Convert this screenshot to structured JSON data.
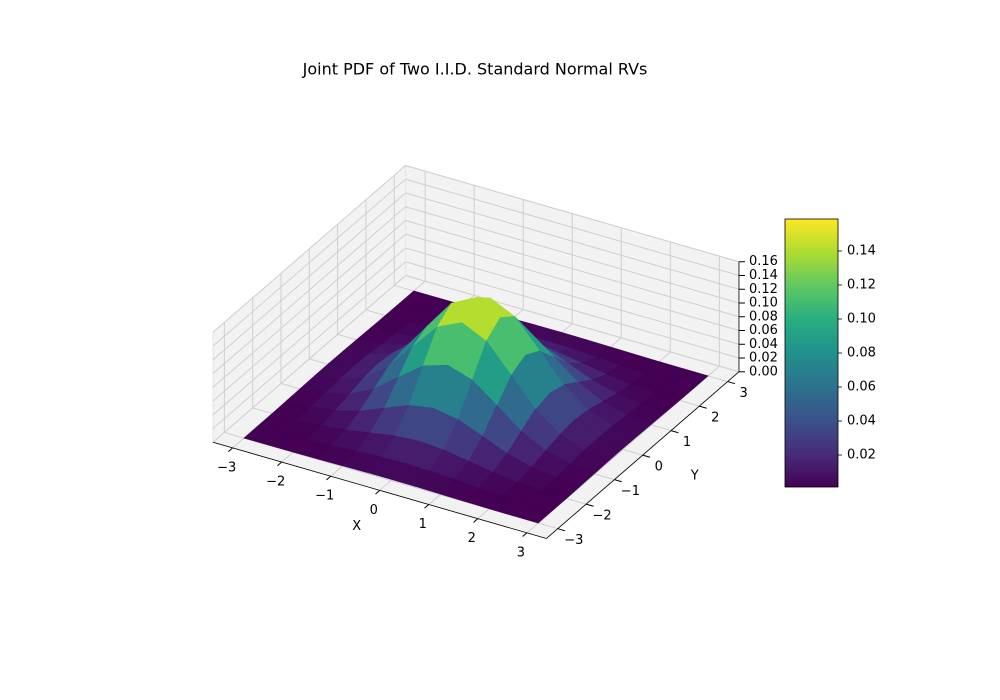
{
  "chart_data": {
    "type": "surface",
    "title": "Joint PDF of Two I.I.D. Standard Normal RVs",
    "xlabel": "X",
    "ylabel": "Y",
    "x": [
      -3,
      -2.5,
      -2,
      -1.5,
      -1,
      -0.5,
      0,
      0.5,
      1,
      1.5,
      2,
      2.5,
      3
    ],
    "y": [
      -3,
      -2.5,
      -2,
      -1.5,
      -1,
      -0.5,
      0,
      0.5,
      1,
      1.5,
      2,
      2.5,
      3
    ],
    "z": [
      [
        0,
        0.0001,
        0.0002,
        0.0006,
        0.0011,
        0.0016,
        0.0018,
        0.0016,
        0.0011,
        0.0006,
        0.0002,
        0.0001,
        0
      ],
      [
        0.0001,
        0.0003,
        0.0009,
        0.0023,
        0.0042,
        0.0062,
        0.007,
        0.0062,
        0.0042,
        0.0023,
        0.0009,
        0.0003,
        0.0001
      ],
      [
        0.0002,
        0.0009,
        0.0029,
        0.007,
        0.0131,
        0.019,
        0.0215,
        0.019,
        0.0131,
        0.007,
        0.0029,
        0.0009,
        0.0002
      ],
      [
        0.0006,
        0.0023,
        0.007,
        0.0168,
        0.0313,
        0.0456,
        0.0517,
        0.0456,
        0.0313,
        0.0168,
        0.007,
        0.0023,
        0.0006
      ],
      [
        0.0011,
        0.0042,
        0.0131,
        0.0313,
        0.0586,
        0.0852,
        0.0965,
        0.0852,
        0.0586,
        0.0313,
        0.0131,
        0.0042,
        0.0011
      ],
      [
        0.0016,
        0.0062,
        0.019,
        0.0456,
        0.0852,
        0.124,
        0.1405,
        0.124,
        0.0852,
        0.0456,
        0.019,
        0.0062,
        0.0016
      ],
      [
        0.0018,
        0.007,
        0.0215,
        0.0517,
        0.0965,
        0.1405,
        0.1592,
        0.1405,
        0.0965,
        0.0517,
        0.0215,
        0.007,
        0.0018
      ],
      [
        0.0016,
        0.0062,
        0.019,
        0.0456,
        0.0852,
        0.124,
        0.1405,
        0.124,
        0.0852,
        0.0456,
        0.019,
        0.0062,
        0.0016
      ],
      [
        0.0011,
        0.0042,
        0.0131,
        0.0313,
        0.0586,
        0.0852,
        0.0965,
        0.0852,
        0.0586,
        0.0313,
        0.0131,
        0.0042,
        0.0011
      ],
      [
        0.0006,
        0.0023,
        0.007,
        0.0168,
        0.0313,
        0.0456,
        0.0517,
        0.0456,
        0.0313,
        0.0168,
        0.007,
        0.0023,
        0.0006
      ],
      [
        0.0002,
        0.0009,
        0.0029,
        0.007,
        0.0131,
        0.019,
        0.0215,
        0.019,
        0.0131,
        0.007,
        0.0029,
        0.0009,
        0.0002
      ],
      [
        0.0001,
        0.0003,
        0.0009,
        0.0023,
        0.0042,
        0.0062,
        0.007,
        0.0062,
        0.0042,
        0.0023,
        0.0009,
        0.0003,
        0.0001
      ],
      [
        0,
        0.0001,
        0.0002,
        0.0006,
        0.0011,
        0.0016,
        0.0018,
        0.0016,
        0.0011,
        0.0006,
        0.0002,
        0.0001,
        0
      ]
    ],
    "xlim": [
      -3.4,
      3.4
    ],
    "ylim": [
      -3.4,
      3.4
    ],
    "zlim": [
      0,
      0.16
    ],
    "xticks": [
      {
        "value": -3,
        "label": "−3"
      },
      {
        "value": -2,
        "label": "−2"
      },
      {
        "value": -1,
        "label": "−1"
      },
      0,
      1,
      2,
      3
    ],
    "yticks": [
      {
        "value": -3,
        "label": "−3"
      },
      {
        "value": -2,
        "label": "−2"
      },
      {
        "value": -1,
        "label": "−1"
      },
      0,
      1,
      2,
      3
    ],
    "zticks": [
      {
        "value": 0,
        "label": "0.00"
      },
      0.02,
      0.04,
      0.06,
      0.08,
      {
        "value": 0.1,
        "label": "0.10"
      },
      0.12,
      0.14,
      0.16
    ],
    "colormap": "viridis",
    "clim": [
      0.0012,
      0.1588
    ],
    "colorbar_ticks": [
      0.02,
      0.04,
      0.06,
      0.08,
      {
        "value": 0.1,
        "label": "0.10"
      },
      0.12,
      0.14
    ],
    "grid": true
  }
}
